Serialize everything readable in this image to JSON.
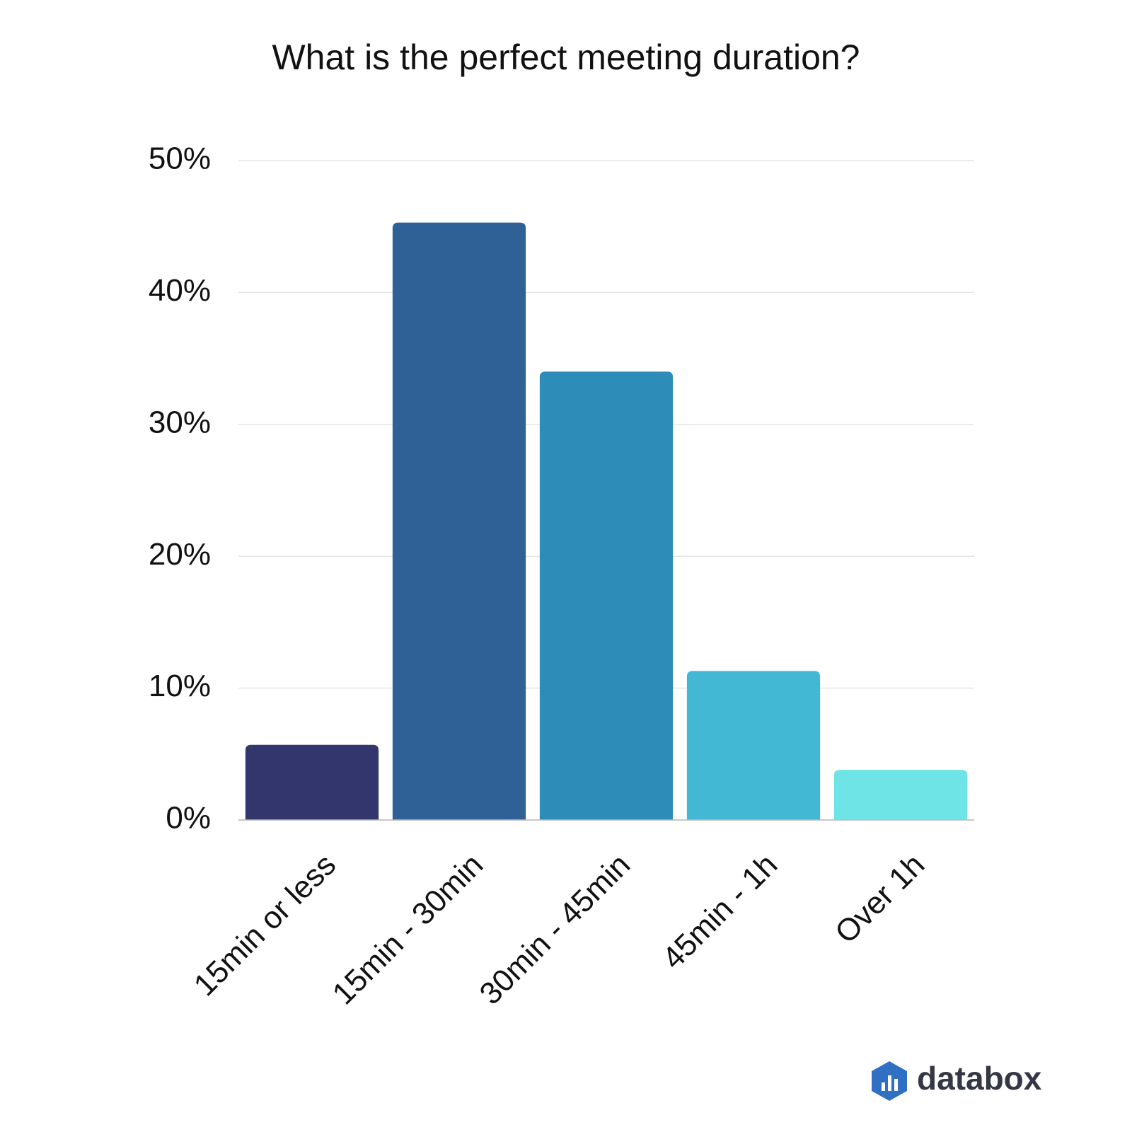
{
  "chart_data": {
    "type": "bar",
    "title": "What is the perfect meeting duration?",
    "categories": [
      "15min or less",
      "15min - 30min",
      "30min - 45min",
      "45min - 1h",
      "Over 1h"
    ],
    "values": [
      5.7,
      45.3,
      34.0,
      11.3,
      3.8
    ],
    "colors": [
      "#32366c",
      "#2f6096",
      "#2e8cb8",
      "#42b8d5",
      "#6ee4e6"
    ],
    "ylim": [
      0,
      50
    ],
    "yticks": [
      {
        "value": 0,
        "label": "0%"
      },
      {
        "value": 10,
        "label": "10%"
      },
      {
        "value": 20,
        "label": "20%"
      },
      {
        "value": 30,
        "label": "30%"
      },
      {
        "value": 40,
        "label": "40%"
      },
      {
        "value": 50,
        "label": "50%"
      }
    ],
    "grid": true
  },
  "brand": "databox"
}
